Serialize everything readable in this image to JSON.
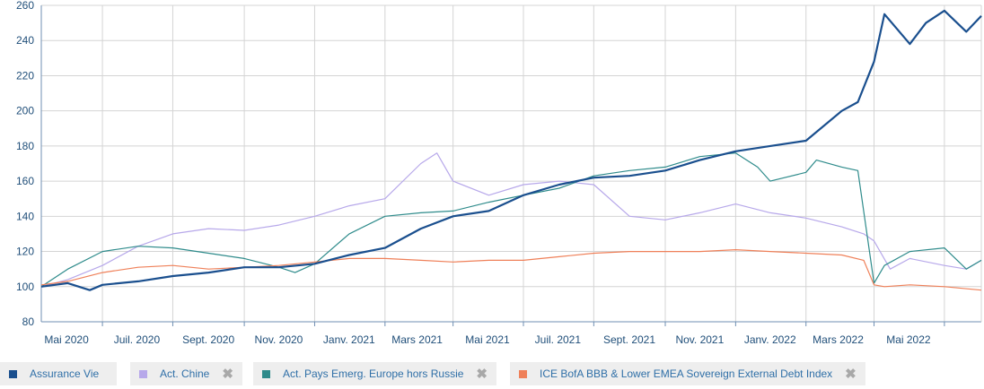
{
  "chart_data": {
    "type": "line",
    "ylim": [
      80,
      260
    ],
    "y_ticks": [
      80,
      100,
      120,
      140,
      160,
      180,
      200,
      220,
      240,
      260
    ],
    "x_range": [
      "2020-03-09",
      "2022-06-02"
    ],
    "x_ticks": [
      {
        "date": "2020-05-01",
        "label": "Mai 2020"
      },
      {
        "date": "2020-07-01",
        "label": "Juil. 2020"
      },
      {
        "date": "2020-09-01",
        "label": "Sept. 2020"
      },
      {
        "date": "2020-11-01",
        "label": "Nov. 2020"
      },
      {
        "date": "2021-01-01",
        "label": "Janv. 2021"
      },
      {
        "date": "2021-03-01",
        "label": "Mars 2021"
      },
      {
        "date": "2021-05-01",
        "label": "Mai 2021"
      },
      {
        "date": "2021-07-01",
        "label": "Juil. 2021"
      },
      {
        "date": "2021-09-01",
        "label": "Sept. 2021"
      },
      {
        "date": "2021-11-01",
        "label": "Nov. 2021"
      },
      {
        "date": "2022-01-01",
        "label": "Janv. 2022"
      },
      {
        "date": "2022-03-01",
        "label": "Mars 2022"
      },
      {
        "date": "2022-05-01",
        "label": "Mai 2022"
      }
    ],
    "grid": true,
    "legend_position": "bottom",
    "series": [
      {
        "name": "Assurance Vie",
        "color": "#1a4f8e",
        "removable": false,
        "x": [
          "2020-03-09",
          "2020-04-01",
          "2020-04-20",
          "2020-05-01",
          "2020-06-01",
          "2020-07-01",
          "2020-08-01",
          "2020-09-01",
          "2020-10-01",
          "2020-11-01",
          "2020-12-01",
          "2021-01-01",
          "2021-02-01",
          "2021-03-01",
          "2021-04-01",
          "2021-05-01",
          "2021-06-01",
          "2021-07-01",
          "2021-08-01",
          "2021-09-01",
          "2021-10-01",
          "2021-11-01",
          "2021-12-01",
          "2022-01-01",
          "2022-02-01",
          "2022-02-15",
          "2022-03-01",
          "2022-03-10",
          "2022-04-01",
          "2022-04-15",
          "2022-05-01",
          "2022-05-20",
          "2022-06-02"
        ],
        "y": [
          100,
          102,
          98,
          101,
          103,
          106,
          108,
          111,
          111,
          113,
          118,
          122,
          133,
          140,
          143,
          152,
          158,
          162,
          163,
          166,
          172,
          177,
          180,
          183,
          200,
          205,
          228,
          255,
          238,
          250,
          257,
          245,
          254
        ]
      },
      {
        "name": "Act. Chine",
        "color": "#b7a8ea",
        "removable": true,
        "x": [
          "2020-03-09",
          "2020-04-01",
          "2020-05-01",
          "2020-06-01",
          "2020-07-01",
          "2020-08-01",
          "2020-09-01",
          "2020-10-01",
          "2020-11-01",
          "2020-12-01",
          "2021-01-01",
          "2021-02-01",
          "2021-02-15",
          "2021-03-01",
          "2021-04-01",
          "2021-05-01",
          "2021-06-01",
          "2021-07-01",
          "2021-08-01",
          "2021-09-01",
          "2021-10-01",
          "2021-11-01",
          "2021-12-01",
          "2022-01-01",
          "2022-02-01",
          "2022-02-20",
          "2022-03-01",
          "2022-03-15",
          "2022-04-01",
          "2022-05-01",
          "2022-05-20",
          "2022-06-02"
        ],
        "y": [
          100,
          104,
          112,
          123,
          130,
          133,
          132,
          135,
          140,
          146,
          150,
          170,
          176,
          160,
          152,
          158,
          160,
          158,
          140,
          138,
          142,
          147,
          142,
          139,
          134,
          130,
          126,
          110,
          116,
          112,
          110,
          115
        ]
      },
      {
        "name": "Act. Pays Emerg. Europe hors Russie",
        "color": "#2e8b8b",
        "removable": true,
        "x": [
          "2020-03-09",
          "2020-04-01",
          "2020-05-01",
          "2020-06-01",
          "2020-07-01",
          "2020-08-01",
          "2020-09-01",
          "2020-10-01",
          "2020-10-15",
          "2020-11-01",
          "2020-12-01",
          "2021-01-01",
          "2021-02-01",
          "2021-03-01",
          "2021-04-01",
          "2021-05-01",
          "2021-06-01",
          "2021-07-01",
          "2021-08-01",
          "2021-09-01",
          "2021-10-01",
          "2021-11-01",
          "2021-11-20",
          "2021-12-01",
          "2022-01-01",
          "2022-01-10",
          "2022-02-01",
          "2022-02-15",
          "2022-03-01",
          "2022-03-10",
          "2022-04-01",
          "2022-05-01",
          "2022-05-20",
          "2022-06-02"
        ],
        "y": [
          100,
          110,
          120,
          123,
          122,
          119,
          116,
          111,
          108,
          113,
          130,
          140,
          142,
          143,
          148,
          152,
          156,
          163,
          166,
          168,
          174,
          176,
          168,
          160,
          165,
          172,
          168,
          166,
          102,
          112,
          120,
          122,
          110,
          115
        ]
      },
      {
        "name": "ICE BofA BBB & Lower EMEA Sovereign External Debt Index",
        "color": "#ef8059",
        "removable": true,
        "x": [
          "2020-03-09",
          "2020-04-01",
          "2020-05-01",
          "2020-06-01",
          "2020-07-01",
          "2020-08-01",
          "2020-09-01",
          "2020-10-01",
          "2020-11-01",
          "2020-12-01",
          "2021-01-01",
          "2021-02-01",
          "2021-03-01",
          "2021-04-01",
          "2021-05-01",
          "2021-06-01",
          "2021-07-01",
          "2021-08-01",
          "2021-09-01",
          "2021-10-01",
          "2021-11-01",
          "2021-12-01",
          "2022-01-01",
          "2022-02-01",
          "2022-02-20",
          "2022-03-01",
          "2022-03-10",
          "2022-04-01",
          "2022-05-01",
          "2022-06-02"
        ],
        "y": [
          101,
          103,
          108,
          111,
          112,
          110,
          111,
          112,
          114,
          116,
          116,
          115,
          114,
          115,
          115,
          117,
          119,
          120,
          120,
          120,
          121,
          120,
          119,
          118,
          115,
          101,
          100,
          101,
          100,
          98
        ]
      }
    ]
  }
}
